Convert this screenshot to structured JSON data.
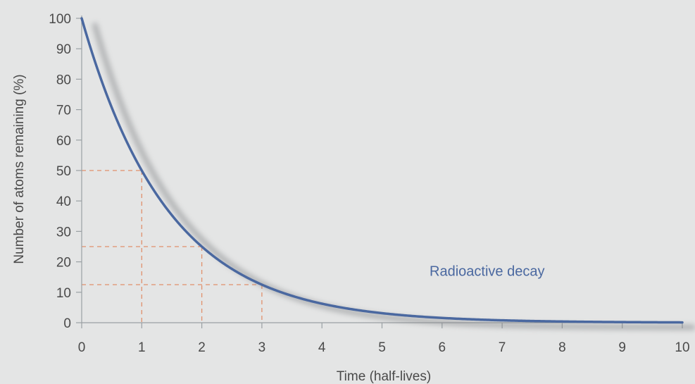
{
  "chart_data": {
    "type": "line",
    "title": "",
    "xlabel": "Time (half-lives)",
    "ylabel": "Number of atoms remaining (%)",
    "xlim": [
      0,
      10
    ],
    "ylim": [
      0,
      100
    ],
    "x_ticks": [
      0,
      1,
      2,
      3,
      4,
      5,
      6,
      7,
      8,
      9,
      10
    ],
    "y_ticks": [
      0,
      10,
      20,
      30,
      40,
      50,
      60,
      70,
      80,
      90,
      100
    ],
    "grid": false,
    "legend": "none",
    "series": [
      {
        "x": [
          0,
          0.5,
          1,
          1.5,
          2,
          2.5,
          3,
          3.5,
          4,
          4.5,
          5,
          5.5,
          6,
          6.5,
          7,
          7.5,
          8,
          8.5,
          9,
          9.5,
          10
        ],
        "values": [
          100,
          70.7,
          50,
          35.4,
          25,
          17.7,
          12.5,
          8.8,
          6.25,
          4.4,
          3.1,
          2.2,
          1.6,
          1.1,
          0.8,
          0.55,
          0.4,
          0.28,
          0.2,
          0.14,
          0.1
        ],
        "color": "#4a68a0"
      }
    ],
    "reference_points": [
      {
        "x": 1,
        "y": 50
      },
      {
        "x": 2,
        "y": 25
      },
      {
        "x": 3,
        "y": 12.5
      }
    ],
    "reference_line_color": "#e0906c",
    "annotations": [
      {
        "text": "Radioactive decay",
        "x": 6.75,
        "y": 17
      }
    ]
  }
}
